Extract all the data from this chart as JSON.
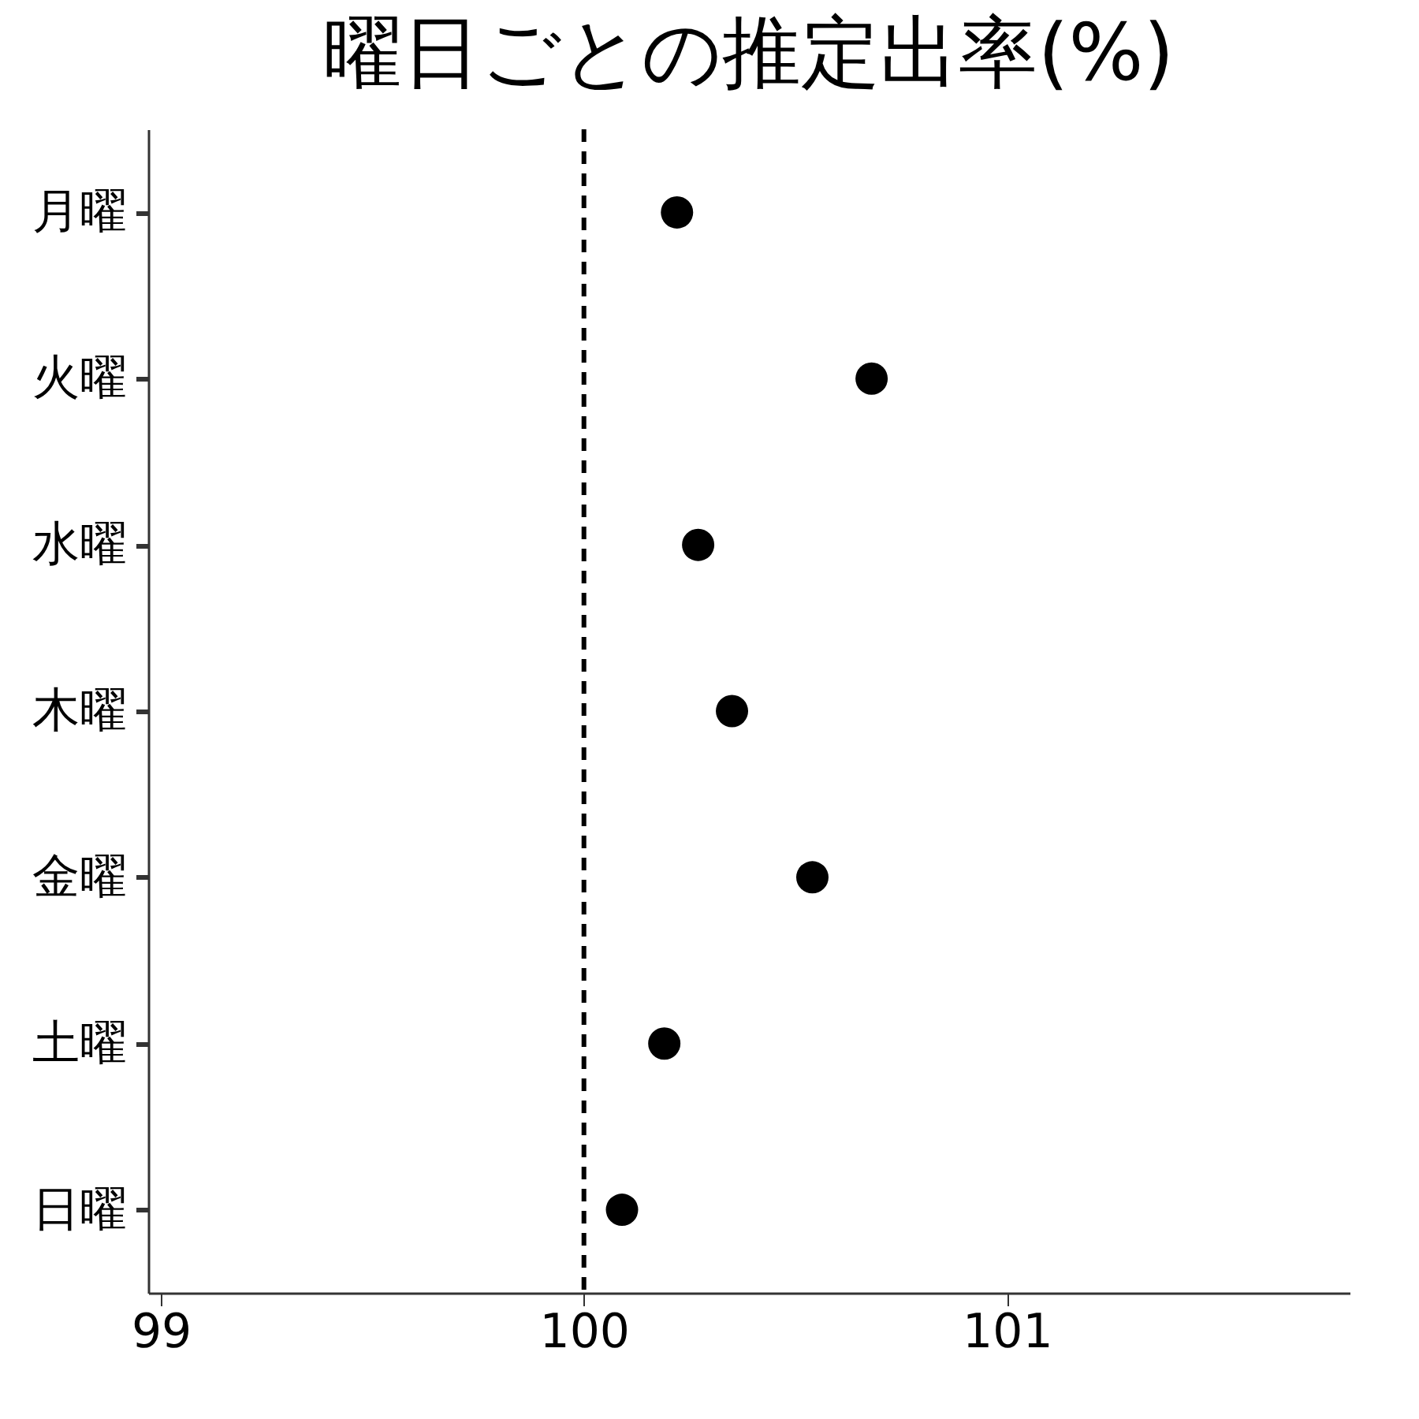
{
  "chart_data": {
    "type": "scatter",
    "title": "曜日ごとの推定出率(%)",
    "categories": [
      "月曜",
      "火曜",
      "水曜",
      "木曜",
      "金曜",
      "土曜",
      "日曜"
    ],
    "orientation": "horizontal",
    "series": [
      {
        "color": "#000000",
        "values": [
          100.22,
          100.68,
          100.27,
          100.35,
          100.54,
          100.19,
          100.09
        ]
      }
    ],
    "xlim": [
      98.97,
      101.81
    ],
    "xticks": [
      99,
      100,
      101
    ],
    "ref_lines": [
      {
        "axis": "x",
        "value": 100,
        "color": "#000000",
        "line_style": "dashed"
      }
    ],
    "marker": "circle",
    "grid": false
  }
}
